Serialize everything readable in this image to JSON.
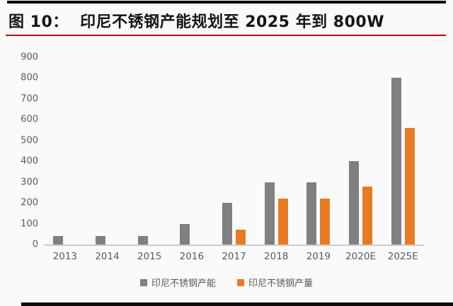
{
  "header": {
    "title": "图 10：  印尼不锈钢产能规划至 2025 年到 800W"
  },
  "colors": {
    "accent_rule": "#c00000",
    "frame_bar": "#0c0c0c",
    "axis_text": "#5a5a5a",
    "capacity_gray": "#808080",
    "output_orange": "#e87b22"
  },
  "chart_data": {
    "type": "bar",
    "title": "印尼不锈钢产能规划至 2025 年到 800W",
    "categories": [
      "2013",
      "2014",
      "2015",
      "2016",
      "2017",
      "2018",
      "2019",
      "2020E",
      "2025E"
    ],
    "series": [
      {
        "name": "印尼不锈钢产能",
        "color": "#808080",
        "values": [
          40,
          40,
          40,
          100,
          200,
          300,
          300,
          400,
          800
        ]
      },
      {
        "name": "印尼不锈钢产量",
        "color": "#e87b22",
        "values": [
          0,
          0,
          0,
          0,
          70,
          220,
          220,
          280,
          560
        ]
      }
    ],
    "xlabel": "",
    "ylabel": "",
    "ylim": [
      0,
      900
    ],
    "ytick_step": 100,
    "yticks": [
      900,
      800,
      700,
      600,
      500,
      400,
      300,
      200,
      100,
      0
    ],
    "grid": false,
    "legend_position": "bottom"
  }
}
